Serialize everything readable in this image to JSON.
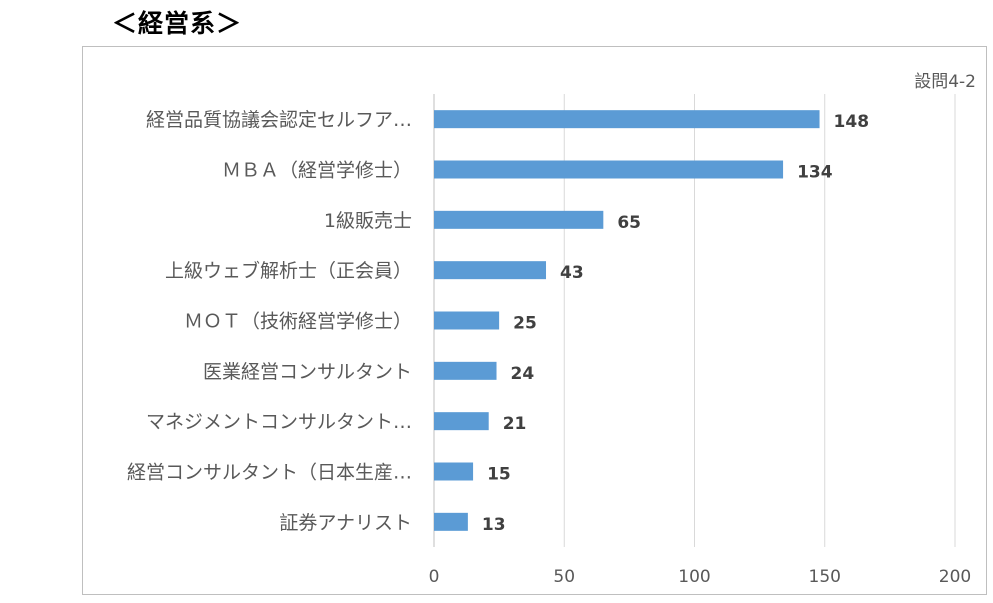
{
  "heading": "＜経営系＞",
  "chart_data": {
    "type": "bar",
    "orientation": "horizontal",
    "note": "設問4-2",
    "categories": [
      "経営品質協議会認定セルフア…",
      "ＭＢＡ（経営学修士）",
      "1級販売士",
      "上級ウェブ解析士（正会員）",
      "ＭＯＴ（技術経営学修士）",
      "医業経営コンサルタント",
      "マネジメントコンサルタント…",
      "経営コンサルタント（日本生産…",
      "証券アナリスト"
    ],
    "values": [
      148,
      134,
      65,
      43,
      25,
      24,
      21,
      15,
      13
    ],
    "xlim": [
      0,
      200
    ],
    "xticks": [
      "0",
      "50",
      "100",
      "150",
      "200"
    ],
    "grid": true,
    "bar_color": "#5b9bd5",
    "title": "",
    "xlabel": "",
    "ylabel": ""
  }
}
